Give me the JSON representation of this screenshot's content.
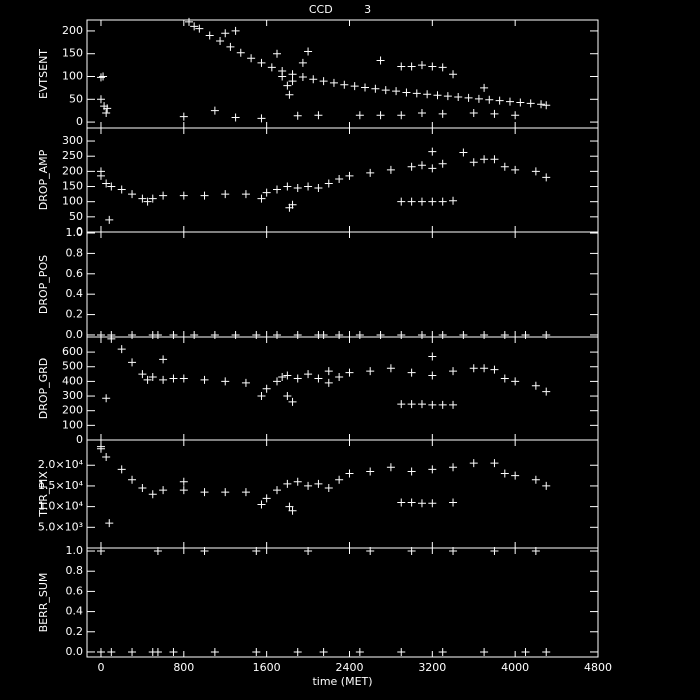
{
  "title": "CCD         3",
  "chart_data": [
    {
      "type": "scatter",
      "ylabel": "EVTSENT",
      "x": [
        850,
        950,
        1050,
        1150,
        1250,
        1350,
        1450,
        1550,
        1650,
        1750,
        1850,
        1950,
        2050,
        2150,
        2250,
        2350,
        2450,
        2550,
        2650,
        2750,
        2850,
        2950,
        3050,
        3150,
        3250,
        3350,
        3450,
        3550,
        3650,
        3750,
        3850,
        3950,
        4050,
        4150,
        4250,
        4300,
        0,
        20,
        0,
        30,
        50,
        60,
        800,
        1100,
        1300,
        1550,
        1900,
        2100,
        1750,
        1800,
        1820,
        1850,
        1700,
        2000,
        1950,
        2700,
        2900,
        3000,
        3100,
        3200,
        3300,
        3400,
        3700,
        2500,
        2700,
        2900,
        3100,
        3300,
        3600,
        3800,
        4000,
        1300,
        1200,
        900
      ],
      "values": [
        220,
        205,
        190,
        178,
        165,
        152,
        140,
        130,
        120,
        112,
        105,
        99,
        94,
        90,
        86,
        82,
        79,
        76,
        73,
        70,
        68,
        65,
        63,
        61,
        59,
        57,
        55,
        53,
        51,
        49,
        47,
        45,
        43,
        41,
        39,
        37,
        98,
        100,
        50,
        35,
        20,
        30,
        12,
        25,
        10,
        8,
        14,
        15,
        100,
        80,
        60,
        90,
        150,
        155,
        130,
        135,
        122,
        122,
        125,
        122,
        120,
        105,
        75,
        15,
        15,
        15,
        20,
        18,
        20,
        18,
        15,
        200,
        195,
        210
      ],
      "ylim": [
        -13,
        224
      ],
      "yticks": [
        0,
        50,
        100,
        150,
        200
      ]
    },
    {
      "type": "scatter",
      "ylabel": "DROP_AMP",
      "x": [
        0,
        0,
        50,
        100,
        200,
        300,
        400,
        450,
        500,
        600,
        800,
        1000,
        1200,
        1400,
        1550,
        1600,
        1700,
        1800,
        1850,
        1820,
        1900,
        2000,
        2100,
        2200,
        2300,
        2400,
        2600,
        2800,
        3000,
        3100,
        3200,
        3200,
        3300,
        3500,
        3600,
        3700,
        3800,
        3900,
        4000,
        4200,
        4300,
        80,
        2900,
        3000,
        3100,
        3200,
        3300,
        3400
      ],
      "values": [
        200,
        185,
        160,
        150,
        140,
        125,
        110,
        100,
        110,
        120,
        120,
        120,
        125,
        125,
        110,
        130,
        140,
        150,
        90,
        80,
        145,
        150,
        145,
        160,
        175,
        185,
        195,
        205,
        215,
        220,
        265,
        210,
        225,
        262,
        230,
        240,
        240,
        215,
        205,
        200,
        180,
        40,
        100,
        100,
        100,
        100,
        100,
        103
      ],
      "ylim": [
        0,
        343
      ],
      "yticks": [
        0,
        50,
        100,
        150,
        200,
        250,
        300
      ]
    },
    {
      "type": "scatter",
      "ylabel": "DROP_POS",
      "x": [
        0,
        100,
        300,
        500,
        550,
        700,
        900,
        1100,
        1300,
        1500,
        1700,
        1900,
        2100,
        2150,
        2300,
        2500,
        2700,
        2900,
        3100,
        3300,
        3500,
        3700,
        3900,
        4100,
        4300
      ],
      "values": [
        0,
        0,
        0,
        0,
        0,
        0,
        0,
        0,
        0,
        0,
        0,
        0,
        0,
        0,
        0,
        0,
        0,
        0,
        0,
        0,
        0,
        0,
        0,
        0,
        0
      ],
      "ylim": [
        -0.02,
        1.01
      ],
      "yticks": [
        {
          "value": 0,
          "label": "0.0"
        },
        0.2,
        0.4,
        0.6,
        0.8,
        {
          "value": 1,
          "label": "1.0"
        }
      ]
    },
    {
      "type": "scatter",
      "ylabel": "DROP_GRD",
      "x": [
        100,
        200,
        300,
        400,
        450,
        500,
        600,
        700,
        800,
        1000,
        1200,
        1400,
        1550,
        1600,
        1700,
        1750,
        1800,
        1850,
        1800,
        1900,
        2000,
        2100,
        2200,
        2300,
        2400,
        2600,
        2800,
        3000,
        3200,
        3200,
        3400,
        3600,
        3700,
        3800,
        3900,
        4000,
        4200,
        4300,
        50,
        600,
        2900,
        3000,
        3100,
        3200,
        3300,
        3400,
        2200
      ],
      "values": [
        690,
        620,
        530,
        450,
        410,
        430,
        410,
        420,
        420,
        410,
        400,
        390,
        300,
        350,
        400,
        430,
        440,
        260,
        300,
        420,
        450,
        420,
        390,
        430,
        460,
        470,
        490,
        460,
        570,
        440,
        470,
        490,
        490,
        480,
        420,
        400,
        370,
        330,
        285,
        550,
        245,
        245,
        245,
        240,
        240,
        240,
        470
      ],
      "ylim": [
        0,
        703
      ],
      "yticks": [
        0,
        100,
        200,
        300,
        400,
        500,
        600
      ]
    },
    {
      "type": "scatter",
      "ylabel": "THR_PIX",
      "x": [
        0,
        50,
        200,
        300,
        400,
        500,
        600,
        800,
        1000,
        1200,
        1400,
        1550,
        1600,
        1700,
        1800,
        1850,
        1820,
        1900,
        2000,
        2100,
        2200,
        2300,
        2400,
        2600,
        2800,
        3000,
        3200,
        3400,
        3600,
        3800,
        3900,
        4000,
        4200,
        4300,
        80,
        2900,
        3000,
        3100,
        3200,
        3400,
        0,
        800
      ],
      "values": [
        24000,
        22000,
        19000,
        16500,
        14500,
        13000,
        14000,
        14000,
        13500,
        13500,
        13500,
        10500,
        12000,
        14000,
        15500,
        9000,
        10000,
        16000,
        15000,
        15500,
        14500,
        16500,
        18000,
        18500,
        19500,
        18500,
        19000,
        19500,
        20500,
        20500,
        18000,
        17500,
        16500,
        15000,
        6000,
        11000,
        11000,
        10800,
        10800,
        11000,
        24500,
        16000
      ],
      "ylim": [
        0,
        26100
      ],
      "yticks": [
        {
          "value": 5000,
          "label": "5.0×10³"
        },
        {
          "value": 10000,
          "label": "1.0×10⁴"
        },
        {
          "value": 15000,
          "label": "1.5×10⁴"
        },
        {
          "value": 20000,
          "label": "2.0×10⁴"
        }
      ]
    },
    {
      "type": "scatter",
      "ylabel": "BERR_SUM",
      "xlabel": "time (MET)",
      "x": [
        0,
        550,
        1000,
        1500,
        2000,
        2600,
        3000,
        3400,
        3800,
        4200,
        0,
        100,
        300,
        500,
        550,
        700,
        1100,
        1500,
        1900,
        2150,
        2500,
        2900,
        3300,
        3700,
        4100,
        4300
      ],
      "values": [
        1,
        1,
        1,
        1,
        1,
        1,
        1,
        1,
        1,
        1,
        0,
        0,
        0,
        0,
        0,
        0,
        0,
        0,
        0,
        0,
        0,
        0,
        0,
        0,
        0,
        0
      ],
      "ylim": [
        -0.05,
        1.03
      ],
      "yticks": [
        {
          "value": 0,
          "label": "0.0"
        },
        0.2,
        0.4,
        0.6,
        0.8,
        {
          "value": 1,
          "label": "1.0"
        }
      ],
      "xlim": [
        -135,
        4800
      ],
      "xticks": [
        0,
        800,
        1600,
        2400,
        3200,
        4000,
        4800
      ]
    }
  ]
}
